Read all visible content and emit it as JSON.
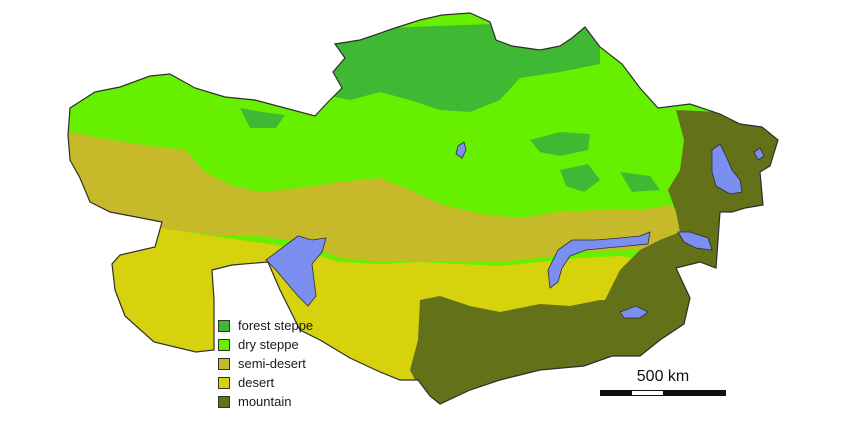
{
  "map": {
    "colors": {
      "forest_steppe": "#3fb833",
      "dry_steppe": "#66f000",
      "semi_desert": "#c7ba2a",
      "desert": "#d7d20e",
      "mountain": "#637118",
      "water": "#7a8ff0",
      "border": "#2e2e2e"
    }
  },
  "legend": {
    "items": [
      {
        "label": "forest steppe",
        "color": "#3fb833"
      },
      {
        "label": "dry steppe",
        "color": "#66f000"
      },
      {
        "label": "semi-desert",
        "color": "#c7ba2a"
      },
      {
        "label": "desert",
        "color": "#d7d20e"
      },
      {
        "label": "mountain",
        "color": "#637118"
      }
    ]
  },
  "scale": {
    "label": "500 km"
  }
}
